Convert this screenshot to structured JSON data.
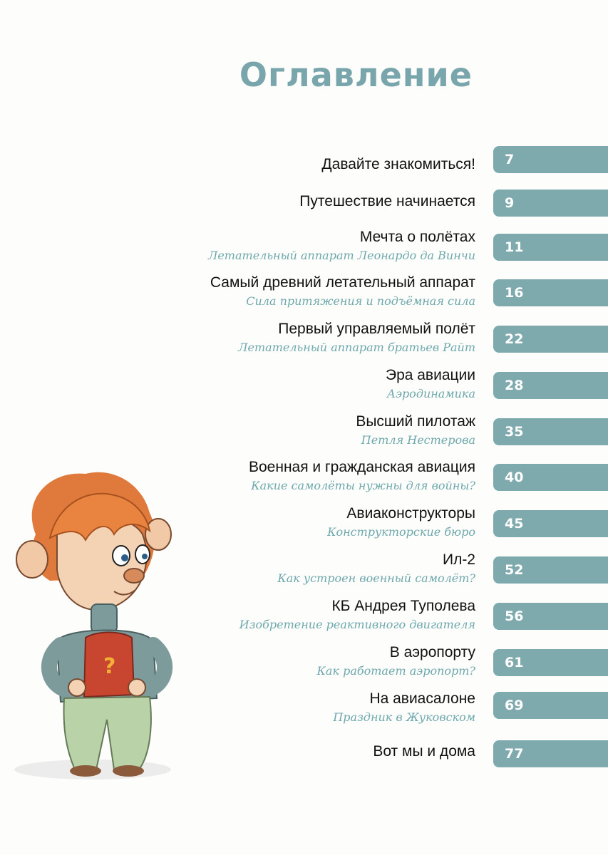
{
  "title": "Оглавление",
  "entries": [
    {
      "title": "Давайте знакомиться!",
      "page": "7"
    },
    {
      "title": "Путешествие начинается",
      "page": "9"
    },
    {
      "title": "Мечта о полётах",
      "subtitle": "Летательный аппарат Леонардо да Винчи",
      "page": "11"
    },
    {
      "title": "Самый древний летательный аппарат",
      "subtitle": "Сила притяжения и подъёмная сила",
      "page": "16"
    },
    {
      "title": "Первый управляемый полёт",
      "subtitle": "Летательный аппарат братьев Райт",
      "page": "22"
    },
    {
      "title": "Эра авиации",
      "subtitle": "Аэродинамика",
      "page": "28"
    },
    {
      "title": "Высший пилотаж",
      "subtitle": "Петля Нестерова",
      "page": "35"
    },
    {
      "title": "Военная и гражданская авиация",
      "subtitle": "Какие самолёты нужны для войны?",
      "page": "40"
    },
    {
      "title": "Авиаконструкторы",
      "subtitle": "Конструкторские бюро",
      "page": "45"
    },
    {
      "title": "Ил-2",
      "subtitle": "Как устроен военный самолёт?",
      "page": "52"
    },
    {
      "title": "КБ Андрея Туполева",
      "subtitle": "Изобретение реактивного двигателя",
      "page": "56"
    },
    {
      "title": "В аэропорту",
      "subtitle": "Как работает аэропорт?",
      "page": "61"
    },
    {
      "title": "На авиасалоне",
      "subtitle": "Праздник в Жуковском",
      "page": "69"
    },
    {
      "title": "Вот мы и дома",
      "page": "77"
    }
  ],
  "colors": {
    "accent": "#7ea9ad",
    "subtitle": "#6ea8ad",
    "title": "#79a6ac"
  }
}
